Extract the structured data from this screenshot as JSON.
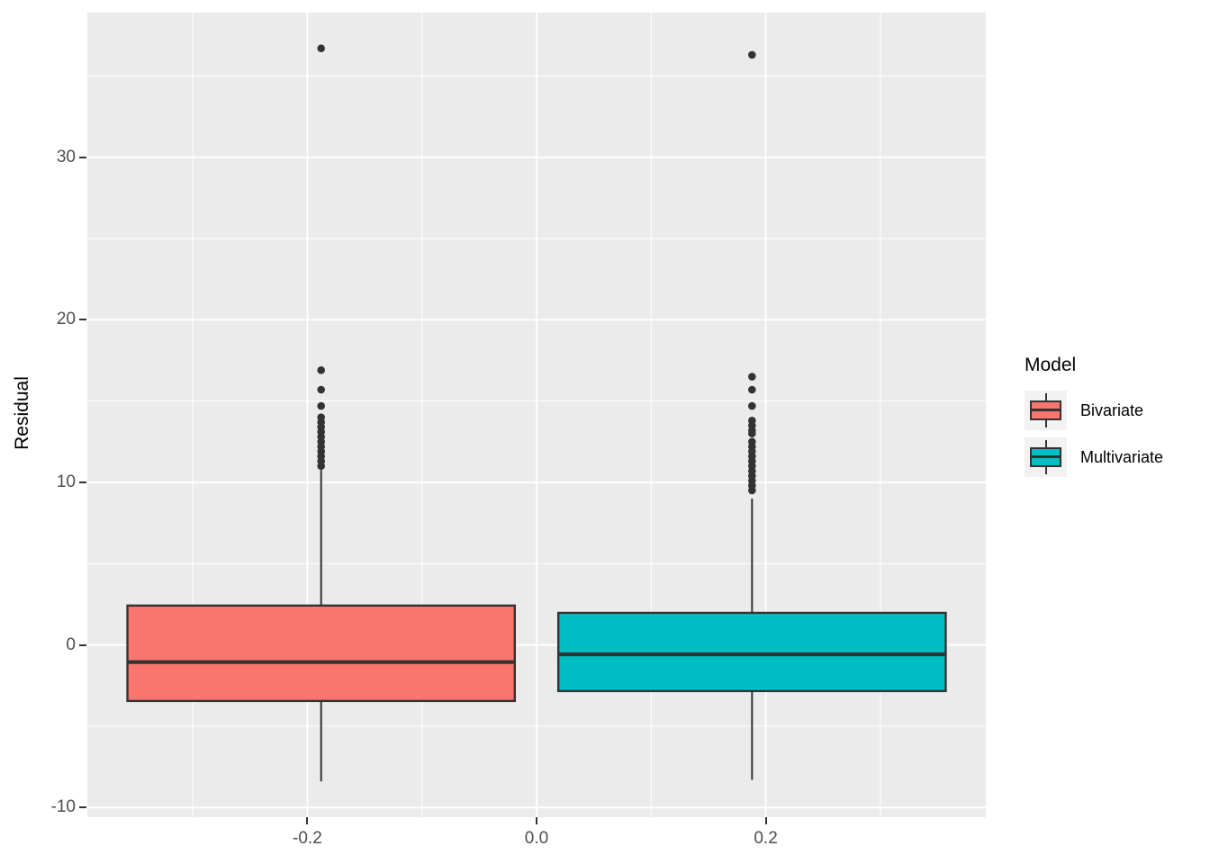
{
  "chart_data": {
    "type": "boxplot",
    "title": "",
    "xlabel": "",
    "ylabel": "Residual",
    "legend_title": "Model",
    "legend_position": "right",
    "grid": true,
    "xlim": [
      -0.392,
      0.392
    ],
    "ylim": [
      -10.6,
      38.9
    ],
    "x_major_ticks": {
      "values": [
        -0.2,
        0.0,
        0.2
      ],
      "labels": [
        "-0.2",
        "0.0",
        "0.2"
      ]
    },
    "y_major_ticks": {
      "values": [
        30,
        20,
        10,
        0,
        -10
      ],
      "labels": [
        "30",
        "20",
        "10",
        "0",
        "-10"
      ]
    },
    "x_minor_gridlines": [
      -0.3,
      -0.1,
      0.1,
      0.3
    ],
    "y_minor_gridlines": [
      35,
      25,
      15,
      5,
      -5
    ],
    "series": [
      {
        "name": "Bivariate",
        "color": "#F8766D",
        "position": -0.188,
        "box_width": 0.338,
        "whisker_low": -8.4,
        "q1": -3.45,
        "median": -1.06,
        "q3": 2.42,
        "whisker_high": 10.75,
        "outliers": [
          36.7,
          16.9,
          15.7,
          14.7,
          14.0,
          13.7,
          13.4,
          13.1,
          12.8,
          12.5,
          12.2,
          11.9,
          11.6,
          11.3,
          11.0
        ]
      },
      {
        "name": "Multivariate",
        "color": "#00BFC4",
        "position": 0.188,
        "box_width": 0.338,
        "whisker_low": -8.3,
        "q1": -2.84,
        "median": -0.58,
        "q3": 1.97,
        "whisker_high": 9.0,
        "outliers": [
          36.3,
          16.5,
          15.7,
          14.7,
          13.8,
          13.5,
          13.2,
          13.0,
          12.5,
          12.2,
          11.9,
          11.6,
          11.3,
          11.0,
          10.7,
          10.4,
          10.1,
          9.8,
          9.5
        ]
      }
    ],
    "panel_bg": "#EBEBEB",
    "grid_color": "#FFFFFF",
    "box_stroke": "#333333",
    "outlier_color": "#333333",
    "tick_color": "#333333",
    "tick_label_color": "#4D4D4D"
  },
  "legend": {
    "title": "Model",
    "key_bg": "#F2F2F2",
    "items": [
      {
        "label": "Bivariate",
        "color": "#F8766D"
      },
      {
        "label": "Multivariate",
        "color": "#00BFC4"
      }
    ]
  }
}
